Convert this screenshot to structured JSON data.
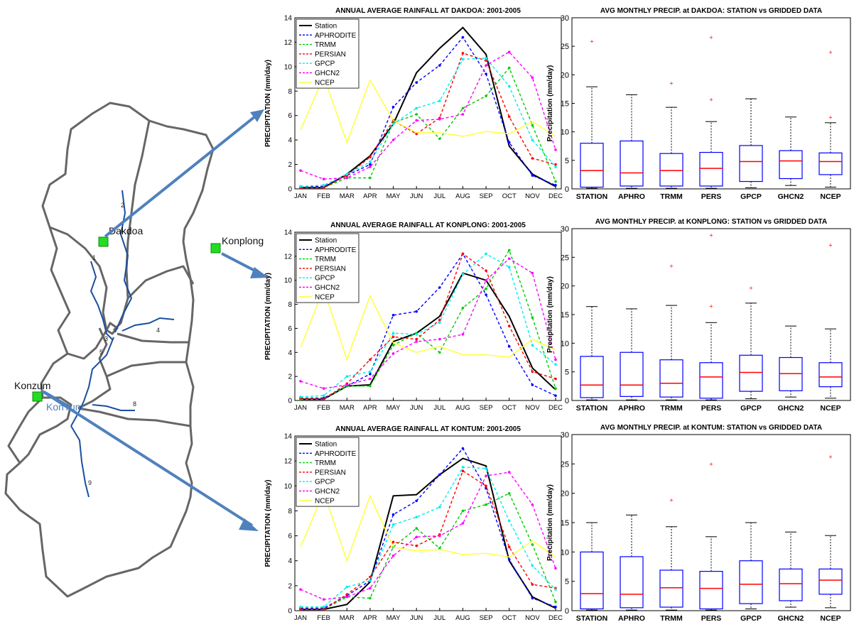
{
  "map": {
    "stations": [
      "Dakdoa",
      "Konplong",
      "Konzum"
    ],
    "overlay_label": "KonTum",
    "subbasin_numbers": [
      "1",
      "2",
      "3",
      "4",
      "5",
      "8",
      "9"
    ],
    "station_marker_color": "#22dd22",
    "boundary_color": "#666666",
    "river_color": "#1a4fa0",
    "arrow_color": "#4f81bd"
  },
  "colors": {
    "Station": "#000000",
    "APHRODITE": "#0000ff",
    "TRMM": "#00cc00",
    "PERSIAN": "#ff0000",
    "GPCP": "#00eeee",
    "GHCN2": "#ff00ff",
    "NCEP": "#ffff33",
    "box": "#0000ff",
    "median": "#ff0000",
    "outlier": "#ff0000"
  },
  "chart_data": [
    {
      "type": "line",
      "title": "ANNUAL AVERAGE RAINFALL AT DAKDOA: 2001-2005",
      "ylabel": "PRECIPITATION (mm/day)",
      "xlabel": "",
      "ylim": [
        0,
        14
      ],
      "yticks": [
        "0",
        "2",
        "4",
        "6",
        "8",
        "10",
        "12",
        "14"
      ],
      "categories": [
        "JAN",
        "FEB",
        "MAR",
        "APR",
        "MAY",
        "JUN",
        "JUL",
        "AUG",
        "SEP",
        "OCT",
        "NOV",
        "DEC"
      ],
      "legend_position": "top-left",
      "series": [
        {
          "name": "Station",
          "values": [
            0.1,
            0.1,
            1.2,
            2.7,
            5.3,
            9.5,
            11.5,
            13.2,
            11.0,
            3.5,
            1.2,
            0.2
          ]
        },
        {
          "name": "APHRODITE",
          "values": [
            0.2,
            0.2,
            1.1,
            2.0,
            6.7,
            8.7,
            10.1,
            12.4,
            9.4,
            3.8,
            1.1,
            0.3
          ]
        },
        {
          "name": "TRMM",
          "values": [
            0.1,
            0.1,
            0.9,
            0.9,
            5.4,
            6.1,
            4.1,
            6.6,
            7.6,
            9.9,
            5.2,
            0.6
          ]
        },
        {
          "name": "PERSIAN",
          "values": [
            0.1,
            0.1,
            1.1,
            2.6,
            5.6,
            4.5,
            5.8,
            11.1,
            10.5,
            5.9,
            2.5,
            2.0
          ]
        },
        {
          "name": "GPCP",
          "values": [
            0.2,
            0.3,
            1.2,
            2.2,
            5.3,
            6.6,
            7.2,
            10.6,
            10.7,
            8.4,
            4.0,
            1.8
          ]
        },
        {
          "name": "GHCN2",
          "values": [
            1.5,
            0.8,
            0.9,
            1.8,
            4.0,
            5.6,
            5.7,
            6.1,
            10.1,
            11.2,
            9.1,
            3.2
          ]
        },
        {
          "name": "NCEP",
          "values": [
            4.8,
            9.2,
            3.8,
            8.9,
            5.6,
            4.6,
            4.6,
            4.3,
            4.7,
            4.5,
            5.5,
            4.3
          ]
        }
      ]
    },
    {
      "type": "line",
      "title": "ANNUAL AVERAGE RAINFALL AT KONPLONG: 2001-2005",
      "ylabel": "PRECIPITATION (mm/day)",
      "xlabel": "",
      "ylim": [
        0,
        14
      ],
      "yticks": [
        "0",
        "2",
        "4",
        "6",
        "8",
        "10",
        "12",
        "14"
      ],
      "categories": [
        "JAN",
        "FEB",
        "MAR",
        "APR",
        "MAY",
        "JUN",
        "JUL",
        "AUG",
        "SEP",
        "OCT",
        "NOV",
        "DEC"
      ],
      "legend_position": "top-left",
      "series": [
        {
          "name": "Station",
          "values": [
            0.1,
            0.1,
            1.2,
            1.3,
            4.9,
            5.6,
            7.0,
            10.6,
            10.0,
            7.0,
            2.7,
            0.9
          ]
        },
        {
          "name": "APHRODITE",
          "values": [
            0.2,
            0.2,
            1.2,
            2.2,
            7.1,
            7.4,
            9.4,
            12.2,
            8.8,
            4.5,
            1.3,
            0.4
          ]
        },
        {
          "name": "TRMM",
          "values": [
            0.1,
            0.1,
            1.2,
            1.2,
            4.6,
            5.6,
            4.0,
            7.7,
            9.3,
            12.5,
            6.9,
            1.0
          ]
        },
        {
          "name": "PERSIAN",
          "values": [
            0.2,
            0.1,
            1.4,
            3.4,
            5.3,
            5.1,
            6.7,
            12.2,
            10.8,
            6.2,
            2.4,
            1.8
          ]
        },
        {
          "name": "GPCP",
          "values": [
            0.3,
            0.4,
            2.0,
            2.4,
            5.6,
            5.5,
            6.5,
            10.5,
            12.2,
            11.1,
            4.6,
            3.0
          ]
        },
        {
          "name": "GHCN2",
          "values": [
            1.6,
            1.0,
            1.3,
            1.8,
            3.9,
            4.9,
            5.1,
            5.5,
            10.0,
            11.8,
            10.6,
            3.4
          ]
        },
        {
          "name": "NCEP",
          "values": [
            4.4,
            9.3,
            3.4,
            8.7,
            4.8,
            4.0,
            4.5,
            3.8,
            3.8,
            3.6,
            5.1,
            4.2
          ]
        }
      ]
    },
    {
      "type": "line",
      "title": "ANNUAL AVERAGE RAINFALL AT KONTUM: 2001-2005",
      "ylabel": "PRECIPITATION (mm/day)",
      "xlabel": "",
      "ylim": [
        0,
        14
      ],
      "yticks": [
        "0",
        "2",
        "4",
        "6",
        "8",
        "10",
        "12",
        "14"
      ],
      "categories": [
        "JAN",
        "FEB",
        "MAR",
        "APR",
        "MAY",
        "JUN",
        "JUL",
        "AUG",
        "SEP",
        "OCT",
        "NOV",
        "DEC"
      ],
      "legend_position": "top-left",
      "series": [
        {
          "name": "Station",
          "values": [
            0.1,
            0.1,
            0.5,
            2.3,
            9.2,
            9.3,
            10.9,
            12.2,
            11.6,
            4.0,
            1.1,
            0.2
          ]
        },
        {
          "name": "APHRODITE",
          "values": [
            0.2,
            0.2,
            1.2,
            2.4,
            7.7,
            8.8,
            10.9,
            13.0,
            9.8,
            4.1,
            1.0,
            0.3
          ]
        },
        {
          "name": "TRMM",
          "values": [
            0.1,
            0.1,
            1.1,
            1.0,
            5.1,
            6.6,
            5.0,
            8.0,
            8.5,
            9.4,
            5.3,
            0.7
          ]
        },
        {
          "name": "PERSIAN",
          "values": [
            0.1,
            0.1,
            1.3,
            2.7,
            5.5,
            5.2,
            6.1,
            11.2,
            10.0,
            5.1,
            2.1,
            1.8
          ]
        },
        {
          "name": "GPCP",
          "values": [
            0.3,
            0.3,
            1.9,
            2.4,
            6.9,
            7.5,
            8.3,
            11.5,
            11.4,
            7.2,
            3.6,
            1.7
          ]
        },
        {
          "name": "GHCN2",
          "values": [
            1.7,
            0.9,
            1.1,
            1.8,
            4.4,
            5.9,
            6.0,
            7.0,
            10.8,
            11.1,
            8.5,
            3.4
          ]
        },
        {
          "name": "NCEP",
          "values": [
            5.1,
            9.5,
            4.0,
            9.2,
            5.1,
            4.8,
            4.9,
            4.5,
            4.6,
            4.3,
            5.6,
            4.3
          ]
        }
      ]
    },
    {
      "type": "box",
      "title": "AVG MONTHLY PRECIP. at DAKDOA: STATION vs GRIDDED DATA",
      "ylabel": "Precipitation (mm/day)",
      "ylim": [
        0,
        30
      ],
      "yticks": [
        "0",
        "5",
        "10",
        "15",
        "20",
        "25",
        "30"
      ],
      "categories": [
        "STATION",
        "APHRO",
        "TRMM",
        "PERS",
        "GPCP",
        "GHCN2",
        "NCEP"
      ],
      "boxes": [
        {
          "min": 0.1,
          "q1": 0.3,
          "median": 3.2,
          "q3": 8.0,
          "max": 17.9,
          "outliers": [
            25.8
          ]
        },
        {
          "min": 0.1,
          "q1": 0.5,
          "median": 2.8,
          "q3": 8.4,
          "max": 16.5,
          "outliers": []
        },
        {
          "min": 0.1,
          "q1": 0.5,
          "median": 3.2,
          "q3": 6.2,
          "max": 14.3,
          "outliers": [
            18.5
          ]
        },
        {
          "min": 0.1,
          "q1": 0.5,
          "median": 3.6,
          "q3": 6.4,
          "max": 11.8,
          "outliers": [
            15.6,
            26.5
          ]
        },
        {
          "min": 0.2,
          "q1": 1.3,
          "median": 4.8,
          "q3": 7.6,
          "max": 15.8,
          "outliers": []
        },
        {
          "min": 0.6,
          "q1": 1.8,
          "median": 4.9,
          "q3": 6.7,
          "max": 12.6,
          "outliers": []
        },
        {
          "min": 0.3,
          "q1": 2.5,
          "median": 4.8,
          "q3": 6.3,
          "max": 11.6,
          "outliers": [
            12.5,
            23.9
          ]
        }
      ]
    },
    {
      "type": "box",
      "title": "AVG MONTHLY PRECIP. at KONPLONG: STATION vs GRIDDED DATA",
      "ylabel": "Precipitation (mm/day)",
      "ylim": [
        0,
        30
      ],
      "yticks": [
        "0",
        "5",
        "10",
        "15",
        "20",
        "25",
        "30"
      ],
      "categories": [
        "STATION",
        "APHRO",
        "TRMM",
        "PERS",
        "GPCP",
        "GHCN2",
        "NCEP"
      ],
      "boxes": [
        {
          "min": 0.1,
          "q1": 0.5,
          "median": 2.7,
          "q3": 7.7,
          "max": 16.4,
          "outliers": []
        },
        {
          "min": 0.1,
          "q1": 0.7,
          "median": 2.7,
          "q3": 8.4,
          "max": 16.0,
          "outliers": []
        },
        {
          "min": 0.1,
          "q1": 0.6,
          "median": 3.0,
          "q3": 7.1,
          "max": 16.6,
          "outliers": [
            23.4
          ]
        },
        {
          "min": 0.1,
          "q1": 0.4,
          "median": 4.1,
          "q3": 6.6,
          "max": 13.6,
          "outliers": [
            16.4,
            28.8
          ]
        },
        {
          "min": 0.3,
          "q1": 1.6,
          "median": 4.9,
          "q3": 7.9,
          "max": 17.0,
          "outliers": [
            19.6
          ]
        },
        {
          "min": 0.6,
          "q1": 1.7,
          "median": 4.7,
          "q3": 7.5,
          "max": 13.0,
          "outliers": []
        },
        {
          "min": 0.4,
          "q1": 2.4,
          "median": 4.1,
          "q3": 6.6,
          "max": 12.5,
          "outliers": [
            27.1
          ]
        }
      ]
    },
    {
      "type": "box",
      "title": "AVG MONTHLY PRECIP. at KONTUM: STATION vs GRIDDED DATA",
      "ylabel": "Precipitation (mm/day)",
      "ylim": [
        0,
        30
      ],
      "yticks": [
        "0",
        "5",
        "10",
        "15",
        "20",
        "25",
        "30"
      ],
      "categories": [
        "STATION",
        "APHRO",
        "TRMM",
        "PERS",
        "GPCP",
        "GHCN2",
        "NCEP"
      ],
      "boxes": [
        {
          "min": 0.1,
          "q1": 0.3,
          "median": 2.9,
          "q3": 10.0,
          "max": 15.0,
          "outliers": []
        },
        {
          "min": 0.1,
          "q1": 0.5,
          "median": 2.8,
          "q3": 9.2,
          "max": 16.3,
          "outliers": []
        },
        {
          "min": 0.1,
          "q1": 0.6,
          "median": 3.9,
          "q3": 6.9,
          "max": 14.3,
          "outliers": [
            18.8
          ]
        },
        {
          "min": 0.1,
          "q1": 0.3,
          "median": 3.8,
          "q3": 6.7,
          "max": 12.6,
          "outliers": [
            24.9
          ]
        },
        {
          "min": 0.3,
          "q1": 1.2,
          "median": 4.5,
          "q3": 8.5,
          "max": 15.0,
          "outliers": []
        },
        {
          "min": 0.6,
          "q1": 1.7,
          "median": 4.6,
          "q3": 7.1,
          "max": 13.4,
          "outliers": []
        },
        {
          "min": 0.5,
          "q1": 2.8,
          "median": 5.2,
          "q3": 7.1,
          "max": 12.8,
          "outliers": [
            26.2
          ]
        }
      ]
    }
  ]
}
